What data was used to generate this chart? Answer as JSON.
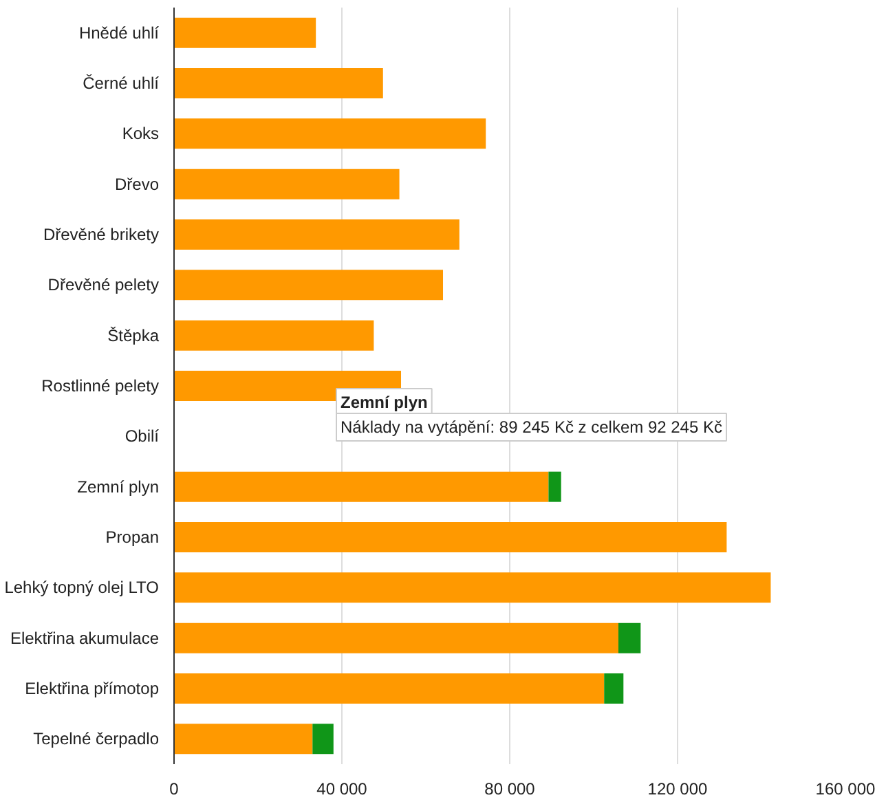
{
  "chart_data": {
    "type": "bar",
    "orientation": "horizontal",
    "stacked": true,
    "categories": [
      "Hnědé uhlí",
      "Černé uhlí",
      "Koks",
      "Dřevo",
      "Dřevěné brikety",
      "Dřevěné pelety",
      "Štěpka",
      "Rostlinné pelety",
      "Obilí",
      "Zemní plyn",
      "Propan",
      "Lehký topný olej LTO",
      "Elektřina akumulace",
      "Elektřina přímotop",
      "Tepelné čerpadlo"
    ],
    "series": [
      {
        "color": "#ff9900",
        "values": [
          33800,
          49800,
          74300,
          53700,
          68000,
          64100,
          47600,
          54100,
          null,
          89245,
          131700,
          142200,
          105900,
          102500,
          33000
        ]
      },
      {
        "color": "#109618",
        "values": [
          null,
          null,
          null,
          null,
          null,
          null,
          null,
          null,
          null,
          3000,
          null,
          null,
          5300,
          4600,
          5000
        ]
      }
    ],
    "xlim": [
      0,
      160000
    ],
    "xticks": [
      0,
      {
        "value": 40000,
        "label": "40 000"
      },
      {
        "value": 80000,
        "label": "80 000"
      },
      {
        "value": 120000,
        "label": "120 000"
      },
      {
        "value": 160000,
        "label": "160 000"
      }
    ],
    "grid": "x",
    "annotations": [
      "Zemní plyn",
      "Náklady na vytápění: 89 245 Kč z celkem 92 245 Kč"
    ]
  }
}
